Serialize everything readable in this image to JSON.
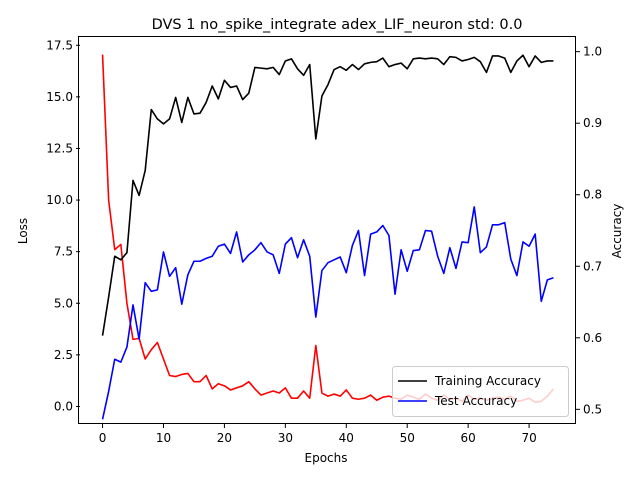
{
  "chart_data": {
    "type": "line",
    "title": "DVS 1 no_spike_integrate adex_LIF_neuron std: 0.0",
    "xlabel": "Epochs",
    "ylabel": "Loss",
    "y2label": "Accuracy",
    "xlim": [
      -3.7,
      77.7
    ],
    "ylim": [
      -0.85,
      17.9
    ],
    "y2lim": [
      0.4795,
      1.0205
    ],
    "xticks": [
      0,
      10,
      20,
      30,
      40,
      50,
      60,
      70
    ],
    "yticks": [
      0.0,
      2.5,
      5.0,
      7.5,
      10.0,
      12.5,
      15.0,
      17.5
    ],
    "ytick_labels": [
      "0.0",
      "2.5",
      "5.0",
      "7.5",
      "10.0",
      "12.5",
      "15.0",
      "17.5"
    ],
    "y2ticks": [
      0.5,
      0.6,
      0.7,
      0.8,
      0.9,
      1.0
    ],
    "y2tick_labels": [
      "0.5",
      "0.6",
      "0.7",
      "0.8",
      "0.9",
      "1.0"
    ],
    "grid": false,
    "legend_position": "bottom-right",
    "x": [
      0,
      1,
      2,
      3,
      4,
      5,
      6,
      7,
      8,
      9,
      10,
      11,
      12,
      13,
      14,
      15,
      16,
      17,
      18,
      19,
      20,
      21,
      22,
      23,
      24,
      25,
      26,
      27,
      28,
      29,
      30,
      31,
      32,
      33,
      34,
      35,
      36,
      37,
      38,
      39,
      40,
      41,
      42,
      43,
      44,
      45,
      46,
      47,
      48,
      49,
      50,
      51,
      52,
      53,
      54,
      55,
      56,
      57,
      58,
      59,
      60,
      61,
      62,
      63,
      64,
      65,
      66,
      67,
      68,
      69,
      70,
      71,
      72,
      73,
      74
    ],
    "series": [
      {
        "name": "",
        "axis": "left",
        "color": "#ff0000",
        "values": [
          17.05,
          10.0,
          7.6,
          7.85,
          5.0,
          3.25,
          3.3,
          2.3,
          2.75,
          3.1,
          2.3,
          1.5,
          1.45,
          1.55,
          1.6,
          1.2,
          1.2,
          1.5,
          0.85,
          1.1,
          1.0,
          0.8,
          0.9,
          1.0,
          1.2,
          0.85,
          0.55,
          0.65,
          0.75,
          0.65,
          0.9,
          0.4,
          0.4,
          0.75,
          0.4,
          2.95,
          0.65,
          0.5,
          0.6,
          0.5,
          0.8,
          0.4,
          0.35,
          0.4,
          0.55,
          0.3,
          0.45,
          0.5,
          0.4,
          0.35,
          0.55,
          0.45,
          0.35,
          0.6,
          0.4,
          0.3,
          0.55,
          0.35,
          0.4,
          0.25,
          0.55,
          0.35,
          0.4,
          0.3,
          0.4,
          0.45,
          0.35,
          0.5,
          0.25,
          0.3,
          0.4,
          0.2,
          0.25,
          0.5,
          0.85
        ]
      },
      {
        "name": "Training Accuracy",
        "axis": "right",
        "color": "#000000",
        "values": [
          0.603,
          0.657,
          0.714,
          0.709,
          0.719,
          0.82,
          0.799,
          0.834,
          0.919,
          0.906,
          0.899,
          0.906,
          0.936,
          0.901,
          0.936,
          0.913,
          0.914,
          0.929,
          0.952,
          0.934,
          0.96,
          0.95,
          0.952,
          0.933,
          0.942,
          0.978,
          0.977,
          0.976,
          0.978,
          0.968,
          0.987,
          0.99,
          0.976,
          0.967,
          0.982,
          0.878,
          0.938,
          0.954,
          0.975,
          0.979,
          0.974,
          0.982,
          0.975,
          0.983,
          0.985,
          0.986,
          0.991,
          0.979,
          0.982,
          0.984,
          0.976,
          0.99,
          0.991,
          0.99,
          0.991,
          0.99,
          0.982,
          0.993,
          0.992,
          0.987,
          0.989,
          0.992,
          0.986,
          0.971,
          0.994,
          0.994,
          0.991,
          0.971,
          0.987,
          0.995,
          0.979,
          0.994,
          0.985,
          0.987,
          0.987
        ]
      },
      {
        "name": "Test Accuracy",
        "axis": "right",
        "color": "#0000ff",
        "values": [
          0.486,
          0.525,
          0.57,
          0.566,
          0.587,
          0.646,
          0.598,
          0.677,
          0.665,
          0.667,
          0.72,
          0.686,
          0.698,
          0.647,
          0.688,
          0.707,
          0.707,
          0.711,
          0.714,
          0.728,
          0.731,
          0.718,
          0.748,
          0.706,
          0.716,
          0.723,
          0.733,
          0.72,
          0.716,
          0.69,
          0.731,
          0.74,
          0.712,
          0.737,
          0.714,
          0.629,
          0.694,
          0.705,
          0.709,
          0.713,
          0.691,
          0.729,
          0.75,
          0.687,
          0.745,
          0.748,
          0.757,
          0.743,
          0.661,
          0.723,
          0.693,
          0.722,
          0.723,
          0.75,
          0.749,
          0.714,
          0.69,
          0.726,
          0.697,
          0.734,
          0.733,
          0.783,
          0.719,
          0.727,
          0.758,
          0.758,
          0.761,
          0.71,
          0.687,
          0.734,
          0.728,
          0.745,
          0.651,
          0.681,
          0.684
        ]
      }
    ]
  }
}
